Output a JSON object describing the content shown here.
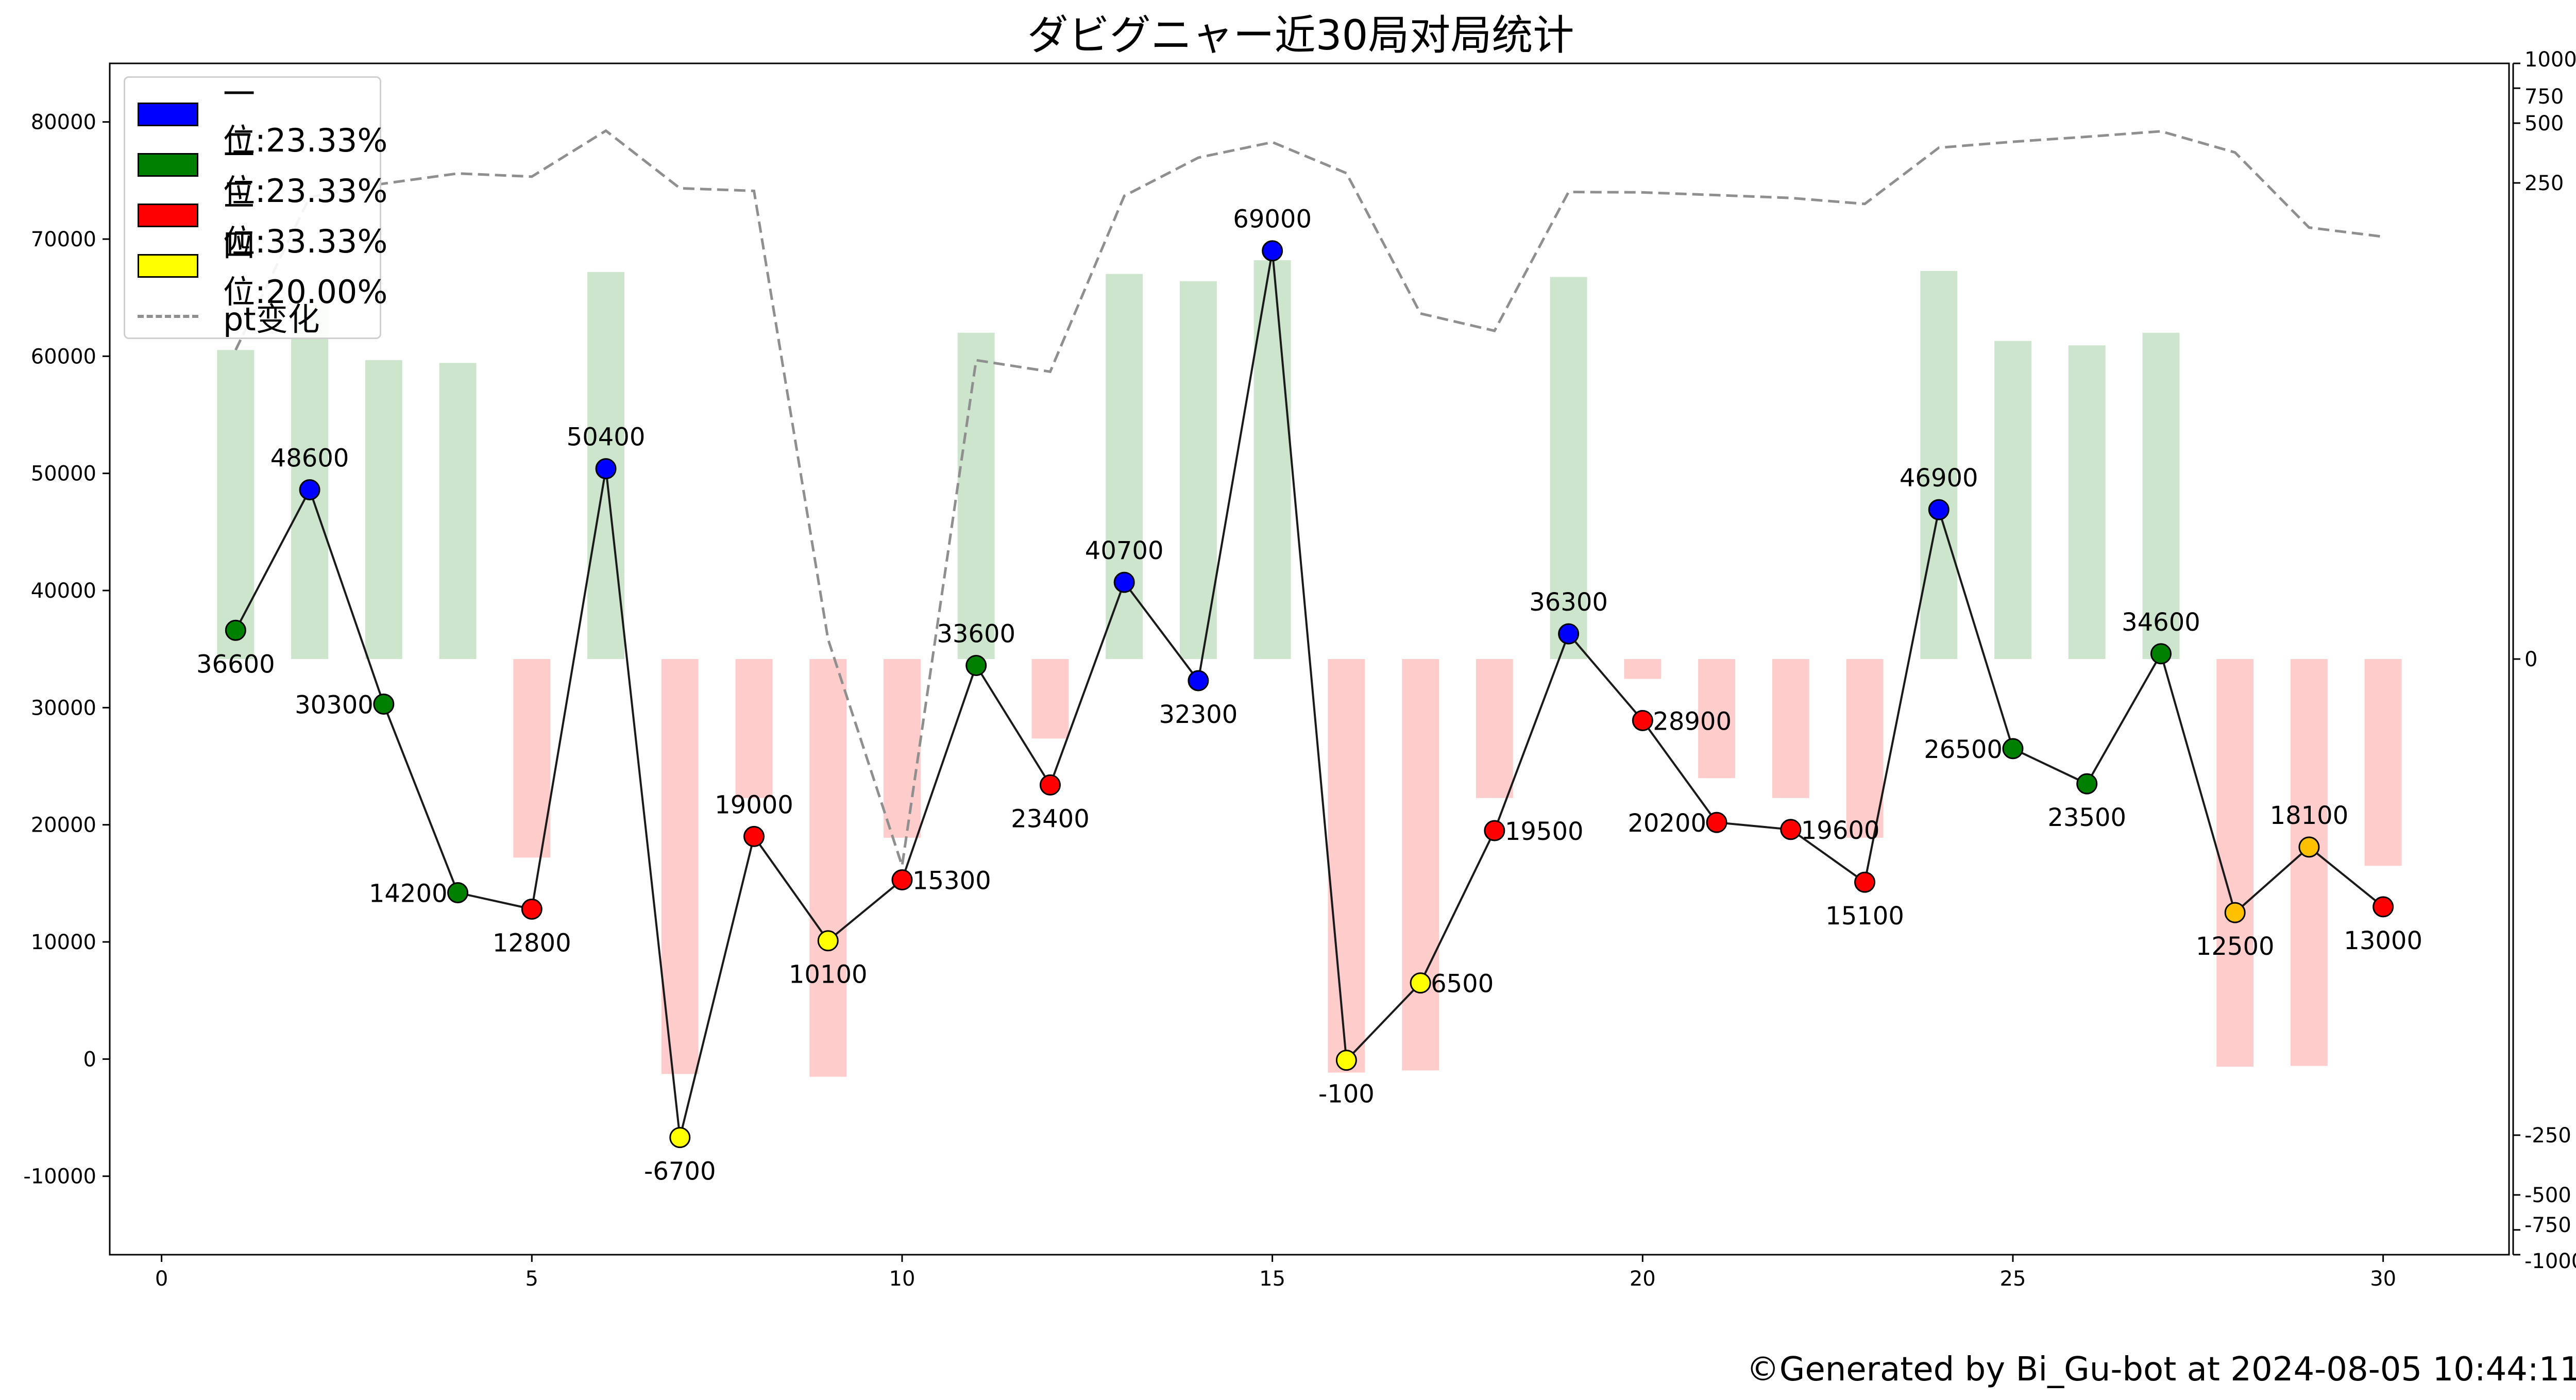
{
  "title": "ダビグニャー近30局对局统计",
  "footer": "©Generated by Bi_Gu-bot at 2024-08-05 10:44:11",
  "legend": {
    "items": [
      {
        "label": "一位:23.33%",
        "color": "#0000ff"
      },
      {
        "label": "二位:23.33%",
        "color": "#008000"
      },
      {
        "label": "三位:33.33%",
        "color": "#ff0000"
      },
      {
        "label": "四位:20.00%",
        "color": "#ffff00"
      },
      {
        "label": "pt变化",
        "color": "#8f8f8f"
      }
    ]
  },
  "chart_data": {
    "type": "line",
    "x": [
      1,
      2,
      3,
      4,
      5,
      6,
      7,
      8,
      9,
      10,
      11,
      12,
      13,
      14,
      15,
      16,
      17,
      18,
      19,
      20,
      21,
      22,
      23,
      24,
      25,
      26,
      27,
      28,
      29,
      30
    ],
    "series": [
      {
        "kind": "score",
        "values": [
          36600,
          48600,
          30300,
          14200,
          12800,
          50400,
          -6700,
          19000,
          10100,
          15300,
          33600,
          23400,
          40700,
          32300,
          69000,
          -100,
          6500,
          19500,
          36300,
          28900,
          20200,
          19600,
          15100,
          46900,
          26500,
          23500,
          34600,
          12500,
          18100,
          13000
        ],
        "ranks": [
          2,
          1,
          2,
          2,
          3,
          1,
          4,
          3,
          4,
          3,
          2,
          3,
          1,
          1,
          1,
          4,
          4,
          3,
          1,
          3,
          3,
          3,
          3,
          1,
          2,
          2,
          2,
          4,
          4,
          3
        ],
        "labels": [
          "36600",
          "48600",
          "30300",
          "14200",
          "12800",
          "50400",
          "-6700",
          "19000",
          "10100",
          "15300",
          "33600",
          "23400",
          "40700",
          "32300",
          "69000",
          "-100",
          "6500",
          "19500",
          "36300",
          "28900",
          "20200",
          "19600",
          "15100",
          "46900",
          "26500",
          "23500",
          "34600",
          "12500",
          "18100",
          "13000"
        ],
        "label_pos": [
          "below",
          "above",
          "left",
          "left",
          "below",
          "above",
          "below",
          "above",
          "below",
          "right",
          "above",
          "below",
          "above",
          "below",
          "above",
          "below",
          "right",
          "right",
          "above",
          "right",
          "left",
          "right",
          "below",
          "above",
          "left",
          "below",
          "above",
          "below",
          "above",
          "below"
        ]
      },
      {
        "kind": "pt_change_bars",
        "values": [
          36,
          63,
          32,
          31,
          -10,
          89,
          -123,
          -7,
          -127,
          -9,
          44,
          -4,
          87,
          80,
          102,
          -121,
          -118,
          -7,
          84,
          -1,
          -6,
          -7,
          -9,
          90,
          40,
          38,
          44,
          -113,
          -112,
          -11
        ]
      },
      {
        "kind": "pt_cumulative",
        "name": "pt变化",
        "values": [
          36,
          212,
          248,
          279,
          269,
          458,
          235,
          228,
          1,
          -11,
          32,
          28,
          215,
          335,
          401,
          280,
          55,
          45,
          225,
          224,
          217,
          210,
          196,
          376,
          403,
          427,
          455,
          356,
          149,
          134
        ]
      }
    ],
    "rank_colors": {
      "1": "#0000ff",
      "2": "#008000",
      "3": "#ff0000",
      "4": "#ffff00",
      "4_late": "#ffc000"
    },
    "bar_colors": {
      "positive": "#cde5cd",
      "negative": "#ffcccc"
    },
    "xlim": [
      -0.7,
      31.7
    ],
    "ylim": [
      -16700,
      85000
    ],
    "y2lim": [
      -1000,
      1000
    ],
    "x_ticks": [
      0,
      5,
      10,
      15,
      20,
      25,
      30
    ],
    "y_ticks": [
      -10000,
      0,
      10000,
      20000,
      30000,
      40000,
      50000,
      60000,
      70000,
      80000
    ],
    "y2_ticks": [
      -1000,
      -750,
      -500,
      -250,
      0,
      250,
      500,
      750,
      1000
    ],
    "grid": false,
    "legend_position": "upper-left",
    "right_axis_scale": "symlog"
  }
}
